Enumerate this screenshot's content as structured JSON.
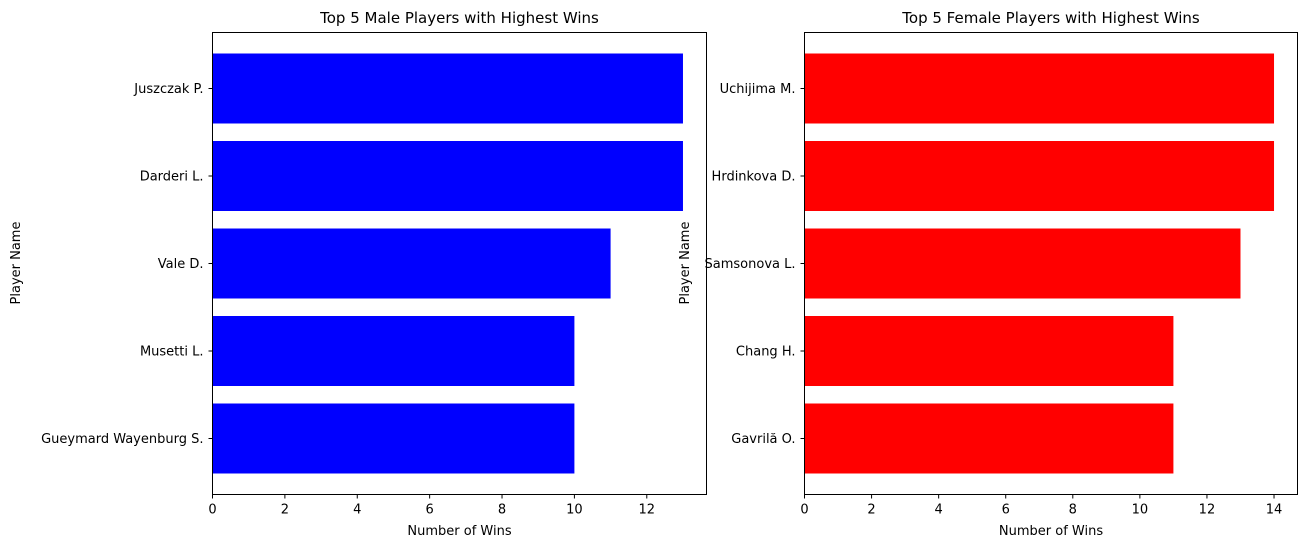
{
  "chart_data": [
    {
      "type": "bar",
      "orientation": "horizontal",
      "title": "Top 5 Male Players with Highest Wins",
      "xlabel": "Number of Wins",
      "ylabel": "Player Name",
      "categories": [
        "Juszczak P.",
        "Darderi L.",
        "Vale D.",
        "Musetti L.",
        "Gueymard Wayenburg S."
      ],
      "values": [
        13,
        13,
        11,
        10,
        10
      ],
      "xlim": [
        0,
        13.65
      ],
      "xticks": [
        0,
        2,
        4,
        6,
        8,
        10,
        12
      ],
      "color": "#0000ff",
      "grid": false
    },
    {
      "type": "bar",
      "orientation": "horizontal",
      "title": "Top 5 Female Players with Highest Wins",
      "xlabel": "Number of Wins",
      "ylabel": "Player Name",
      "categories": [
        "Uchijima M.",
        "Hrdinkova D.",
        "Samsonova L.",
        "Chang H.",
        "Gavrilă O."
      ],
      "values": [
        14,
        14,
        13,
        11,
        11
      ],
      "xlim": [
        0,
        14.7
      ],
      "xticks": [
        0,
        2,
        4,
        6,
        8,
        10,
        12,
        14
      ],
      "color": "#ff0000",
      "grid": false
    }
  ]
}
